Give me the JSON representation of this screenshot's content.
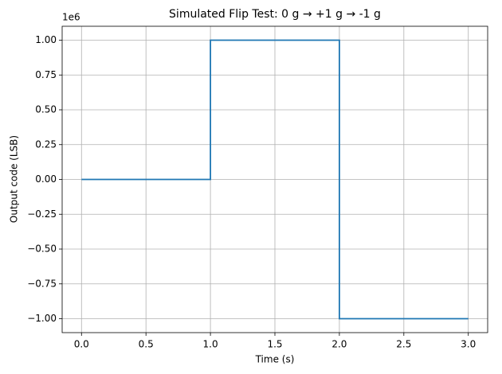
{
  "chart_data": {
    "type": "line",
    "title": "Simulated Flip Test: 0 g → +1 g → -1 g",
    "x_label": "Time (s)",
    "y_label": "Output code (LSB)",
    "y_offset_label": "1e6",
    "x": [
      0,
      1,
      1,
      2,
      2,
      3
    ],
    "series": [
      {
        "color": "#1f77b4",
        "values": [
          0,
          0,
          1000000,
          1000000,
          -1000000,
          -1000000
        ]
      }
    ],
    "xlim": [
      -0.15,
      3.15
    ],
    "ylim": [
      -1100000,
      1100000
    ],
    "xticks": [
      {
        "value": 0,
        "label": "0.0"
      },
      0.5,
      {
        "value": 1,
        "label": "1.0"
      },
      1.5,
      {
        "value": 2,
        "label": "2.0"
      },
      2.5,
      {
        "value": 3,
        "label": "3.0"
      }
    ],
    "yticks": [
      {
        "value": -1000000,
        "label": "−1.00"
      },
      {
        "value": -750000,
        "label": "−0.75"
      },
      {
        "value": -500000,
        "label": "−0.50"
      },
      {
        "value": -250000,
        "label": "−0.25"
      },
      {
        "value": 0,
        "label": "0.00"
      },
      {
        "value": 250000,
        "label": "0.25"
      },
      {
        "value": 500000,
        "label": "0.50"
      },
      {
        "value": 750000,
        "label": "0.75"
      },
      {
        "value": 1000000,
        "label": "1.00"
      }
    ],
    "grid": true
  }
}
